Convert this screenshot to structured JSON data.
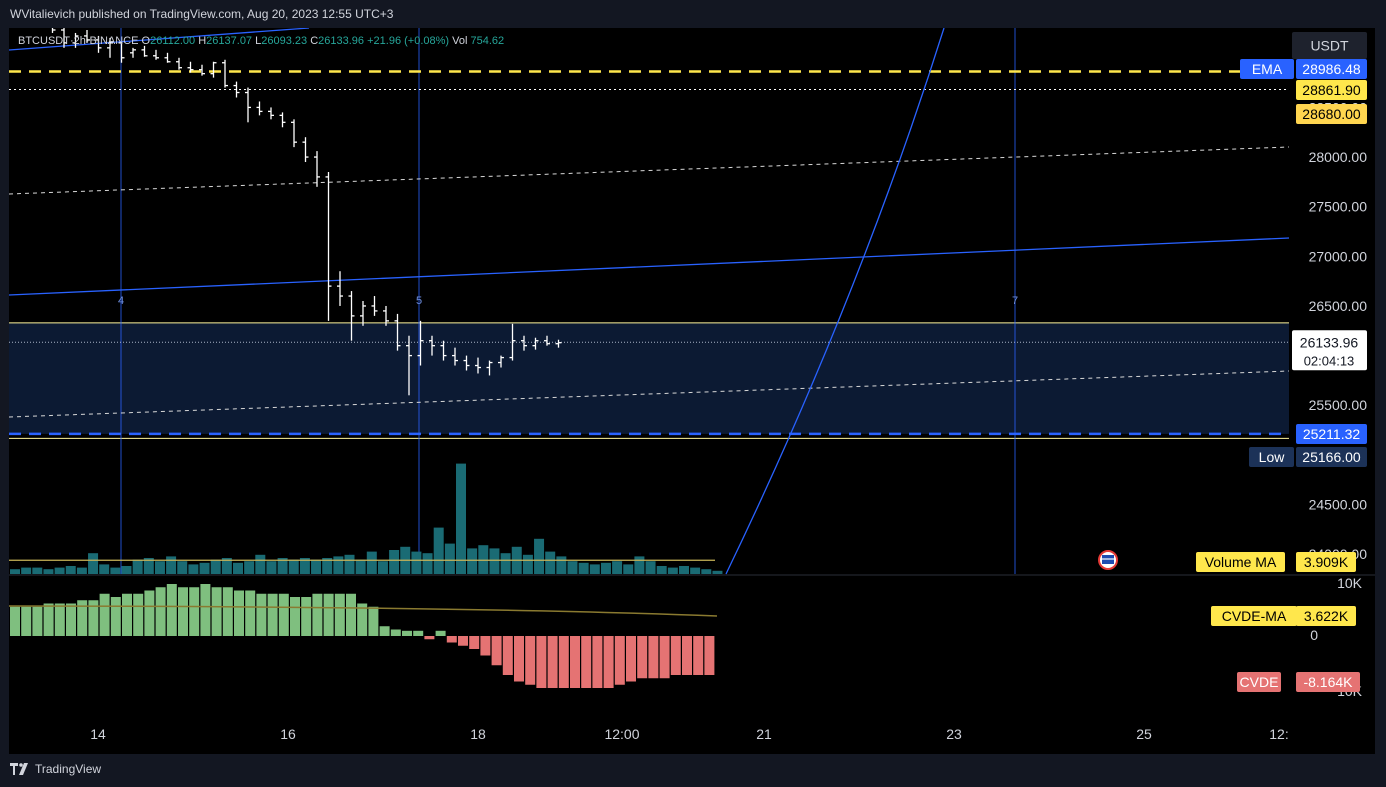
{
  "header": {
    "published_text": "WVitalievich published on TradingView.com, Aug 20, 2023 12:55 UTC+3"
  },
  "symbol": {
    "ticker": "BTCUSDT",
    "interval": "2h",
    "exchange": "BINANCE",
    "open": "26112.00",
    "high": "26137.07",
    "low": "26093.23",
    "close": "26133.96",
    "change": "+21.96 (+0.08%)",
    "vol": "754.62"
  },
  "footer": {
    "brand": "TradingView"
  },
  "colors": {
    "background": "#000000",
    "frame": "#131722",
    "candle": "#ffffff",
    "volume": "#1a6b74",
    "cvde_pos": "#7fbf7f",
    "cvde_neg": "#e57373",
    "accent_blue": "#2962ff",
    "accent_yellow": "#ffe74c"
  },
  "chart_data": [
    {
      "type": "ohlc",
      "y_scale_label": "USDT",
      "ylim": [
        23800,
        29300
      ],
      "price_ticks": [
        "28500.00",
        "28000.00",
        "27500.00",
        "27000.00",
        "26500.00",
        "25500.00",
        "24500.00",
        "24000.00"
      ],
      "x_ticks": [
        "14",
        "16",
        "18",
        "12:00",
        "21",
        "23",
        "25",
        "12:"
      ],
      "vertical_markers": [
        "4",
        "5",
        "7"
      ],
      "current_price": "26133.96",
      "countdown": "02:04:13",
      "price_labels": [
        {
          "label": "EMA",
          "value": "28986.48"
        },
        {
          "label": "",
          "value": "28861.90"
        },
        {
          "label": "",
          "value": "28680.00"
        },
        {
          "label": "",
          "value": "25211.32"
        },
        {
          "label": "Low",
          "value": "25166.00"
        }
      ],
      "levels": {
        "yellow_dashed": 28861.9,
        "white_dotted": 28680.0,
        "blue_dashed": 25211.32,
        "low_line": 25166.0,
        "range_top": 26330,
        "current": 26133.96
      },
      "candles": [
        [
          29350,
          29480,
          29300,
          29380
        ],
        [
          29380,
          29420,
          29250,
          29280
        ],
        [
          29280,
          29300,
          29100,
          29150
        ],
        [
          29150,
          29250,
          29100,
          29220
        ],
        [
          29220,
          29280,
          29150,
          29180
        ],
        [
          29180,
          29220,
          29050,
          29100
        ],
        [
          29100,
          29200,
          29000,
          29150
        ],
        [
          29150,
          29160,
          28950,
          29000
        ],
        [
          29050,
          29100,
          29000,
          29080
        ],
        [
          29080,
          29120,
          29010,
          29020
        ],
        [
          29020,
          29080,
          28980,
          29000
        ],
        [
          29000,
          29050,
          28950,
          28960
        ],
        [
          28960,
          29000,
          28880,
          28900
        ],
        [
          28900,
          28960,
          28850,
          28880
        ],
        [
          28880,
          28930,
          28820,
          28840
        ],
        [
          28840,
          28960,
          28800,
          28950
        ],
        [
          28950,
          28980,
          28700,
          28720
        ],
        [
          28720,
          28760,
          28600,
          28650
        ],
        [
          28650,
          28700,
          28350,
          28500
        ],
        [
          28500,
          28560,
          28420,
          28460
        ],
        [
          28460,
          28500,
          28380,
          28420
        ],
        [
          28420,
          28450,
          28300,
          28350
        ],
        [
          28350,
          28380,
          28100,
          28150
        ],
        [
          28150,
          28200,
          27950,
          28000
        ],
        [
          28000,
          28060,
          27700,
          27800
        ],
        [
          27800,
          27850,
          26350,
          26700
        ],
        [
          26700,
          26850,
          26500,
          26600
        ],
        [
          26600,
          26650,
          26150,
          26400
        ],
        [
          26400,
          26550,
          26300,
          26500
        ],
        [
          26500,
          26600,
          26400,
          26450
        ],
        [
          26450,
          26500,
          26300,
          26350
        ],
        [
          26350,
          26420,
          26050,
          26100
        ],
        [
          26100,
          26200,
          25600,
          26000
        ],
        [
          26000,
          26350,
          25900,
          26150
        ],
        [
          26150,
          26200,
          26000,
          26100
        ],
        [
          26100,
          26150,
          25950,
          26000
        ],
        [
          26000,
          26080,
          25900,
          25950
        ],
        [
          25950,
          26000,
          25850,
          25900
        ],
        [
          25900,
          25980,
          25820,
          25880
        ],
        [
          25880,
          25950,
          25800,
          25930
        ],
        [
          25930,
          26000,
          25880,
          25980
        ],
        [
          25980,
          26320,
          25950,
          26150
        ],
        [
          26150,
          26200,
          26050,
          26100
        ],
        [
          26100,
          26180,
          26060,
          26150
        ],
        [
          26150,
          26200,
          26100,
          26120
        ],
        [
          26120,
          26160,
          26080,
          26130
        ]
      ],
      "ema_curve": [
        [
          21.0,
          23800
        ],
        [
          21.5,
          24700
        ],
        [
          22,
          26000
        ],
        [
          22.5,
          27800
        ],
        [
          23,
          30100
        ]
      ]
    },
    {
      "type": "bar",
      "name": "Volume",
      "indicator_label": "Volume MA",
      "indicator_value": "3.909K",
      "axis_ticks": [
        "10K",
        "0"
      ],
      "values": [
        1.5,
        2.0,
        2.0,
        1.5,
        2.0,
        2.5,
        2.0,
        6.5,
        3.0,
        2.0,
        2.5,
        4.5,
        5.0,
        4.0,
        5.5,
        4.0,
        3.0,
        3.5,
        4.5,
        5.0,
        3.5,
        4.0,
        6.0,
        4.0,
        5.0,
        4.5,
        5.0,
        4.5,
        5.0,
        5.5,
        6.0,
        4.5,
        7.0,
        4.0,
        7.5,
        8.5,
        7.0,
        6.5,
        14.5,
        9.5,
        34.5,
        8.0,
        9.0,
        8.0,
        6.5,
        8.5,
        6.0,
        11.0,
        7.0,
        5.5,
        4.0,
        3.5,
        3.0,
        3.5,
        4.0,
        3.0,
        5.5,
        4.0,
        2.5,
        2.0,
        2.5,
        2.0,
        1.5,
        1.0
      ],
      "ma": [
        3.9
      ]
    },
    {
      "type": "bar",
      "name": "CVDE",
      "indicator_label": "CVDE",
      "indicator_value": "-8.164K",
      "ma_label": "CVDE-MA",
      "ma_value": "3.622K",
      "axis_ticks": [
        "0",
        "10K"
      ],
      "values": [
        4.5,
        4.5,
        4.5,
        5.0,
        5.0,
        5.0,
        5.5,
        5.5,
        6.5,
        6.0,
        6.5,
        6.5,
        7.0,
        7.5,
        8.0,
        7.5,
        7.5,
        8.0,
        7.5,
        7.5,
        7.0,
        7.0,
        6.5,
        6.5,
        6.5,
        6.0,
        6.0,
        6.5,
        6.5,
        6.5,
        6.5,
        5.0,
        4.5,
        1.5,
        1.0,
        0.8,
        0.8,
        -0.5,
        0.8,
        -1.0,
        -1.5,
        -2.0,
        -3.0,
        -4.5,
        -6.0,
        -7.0,
        -7.5,
        -8.0,
        -8.0,
        -8.0,
        -8.0,
        -8.0,
        -8.0,
        -8.0,
        -7.5,
        -7.0,
        -6.5,
        -6.5,
        -6.5,
        -6.0,
        -6.0,
        -6.0,
        -6.0
      ]
    }
  ]
}
